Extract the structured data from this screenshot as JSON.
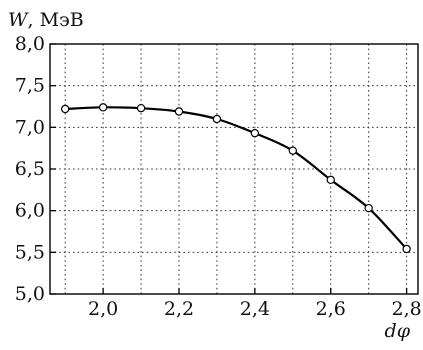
{
  "chart_data": {
    "type": "line",
    "ylabel_var": "W",
    "ylabel_unit": ", МэВ",
    "xlabel": "dφ",
    "xlim": [
      1.86,
      2.83
    ],
    "ylim": [
      5.0,
      8.0
    ],
    "x_ticks": [
      2.0,
      2.2,
      2.4,
      2.6,
      2.8
    ],
    "x_tick_labels": [
      "2,0",
      "2,2",
      "2,4",
      "2,6",
      "2,8"
    ],
    "y_ticks": [
      5.0,
      5.5,
      6.0,
      6.5,
      7.0,
      7.5,
      8.0
    ],
    "y_tick_labels": [
      "5,0",
      "5,5",
      "6,0",
      "6,5",
      "7,0",
      "7,5",
      "8,0"
    ],
    "grid": true,
    "grid_x": [
      1.9,
      2.0,
      2.1,
      2.2,
      2.3,
      2.4,
      2.5,
      2.6,
      2.7,
      2.8
    ],
    "grid_y": [
      5.5,
      6.0,
      6.5,
      7.0,
      7.5
    ],
    "series": [
      {
        "x": [
          1.9,
          2.0,
          2.1,
          2.2,
          2.3,
          2.4,
          2.5,
          2.6,
          2.7,
          2.8
        ],
        "y": [
          7.22,
          7.24,
          7.23,
          7.19,
          7.1,
          6.93,
          6.72,
          6.37,
          6.03,
          5.54
        ]
      }
    ],
    "colors": {
      "line": "#000000",
      "marker_fill": "#ffffff",
      "grid": "#333333"
    }
  }
}
